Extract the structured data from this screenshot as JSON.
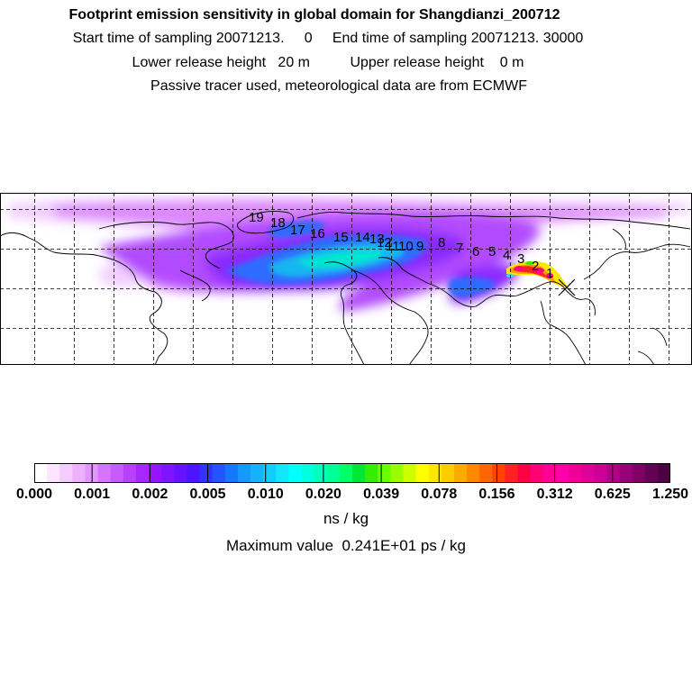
{
  "header": {
    "title": "Footprint emission sensitivity in global domain for Shangdianzi_200712",
    "line1": "Start time of sampling 20071213.     0     End time of sampling 20071213. 30000",
    "line2": "Lower release height   20 m          Upper release height    0 m",
    "line3": "Passive tracer used, meteorological data are from ECMWF"
  },
  "map": {
    "trajectory_labels": [
      "19",
      "18",
      "17",
      "16",
      "15",
      "14",
      "13",
      "12",
      "11",
      "10",
      "9",
      "8",
      "7",
      "6",
      "5",
      "4",
      "3",
      "2",
      "1"
    ],
    "receptor_marker": "x-cross"
  },
  "colorbar": {
    "ticks": [
      "0.000",
      "0.001",
      "0.002",
      "0.005",
      "0.010",
      "0.020",
      "0.039",
      "0.078",
      "0.156",
      "0.312",
      "0.625",
      "1.250"
    ],
    "colors": [
      "#ffffff",
      "#fbe6ff",
      "#f5ccff",
      "#eeb0ff",
      "#e595ff",
      "#d873ff",
      "#c95aff",
      "#b940ff",
      "#a826ff",
      "#9614ff",
      "#7f14ff",
      "#6614ff",
      "#4d14ff",
      "#3333ff",
      "#2255ff",
      "#1477ff",
      "#1499ff",
      "#14b3ff",
      "#14ccff",
      "#14e6ff",
      "#00ffff",
      "#00ffdd",
      "#00ffbb",
      "#00ff99",
      "#00ff66",
      "#00e633",
      "#33ee00",
      "#66ff00",
      "#99ff00",
      "#ccff00",
      "#ffff00",
      "#ffe600",
      "#ffcc00",
      "#ffaa00",
      "#ff8800",
      "#ff6600",
      "#ff4400",
      "#ff2222",
      "#ff0044",
      "#ff0077",
      "#ff0099",
      "#ff00aa",
      "#ee0099",
      "#dd0099",
      "#cc0099",
      "#b30088",
      "#990077",
      "#800066",
      "#660055",
      "#4d0044"
    ],
    "unit": "ns / kg",
    "max_value": "Maximum value  0.241E+01 ps / kg"
  }
}
